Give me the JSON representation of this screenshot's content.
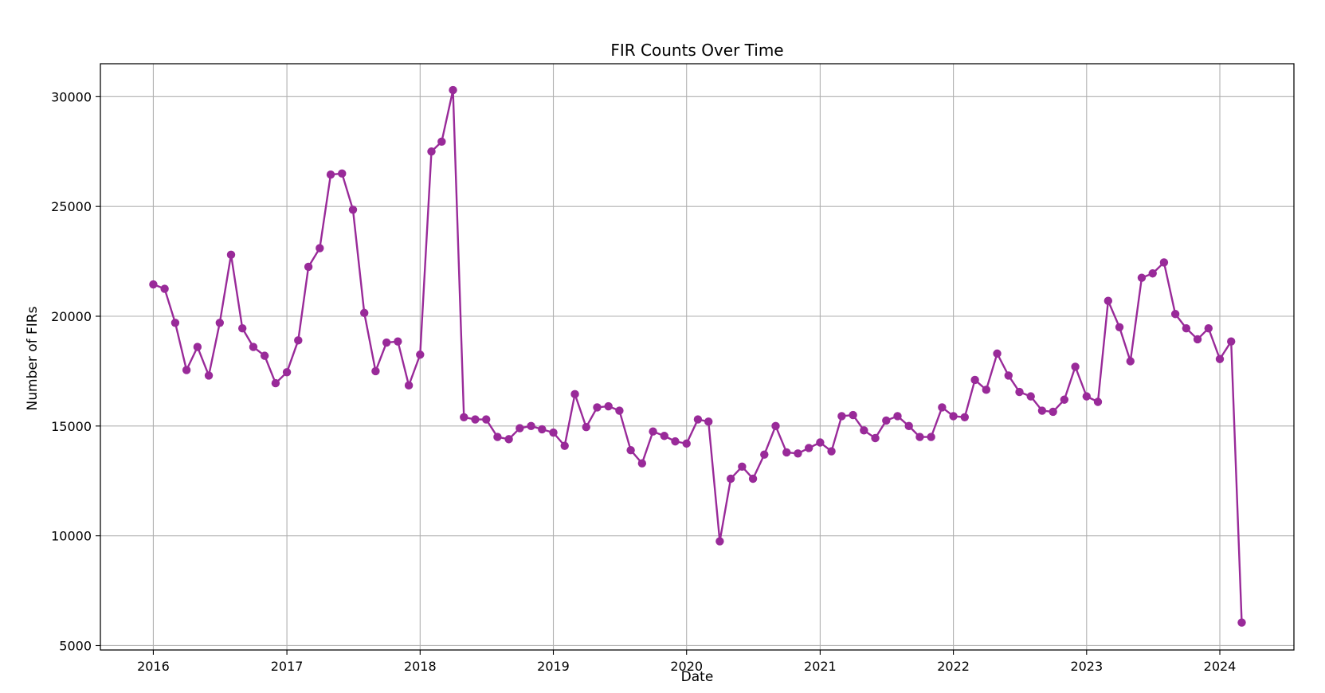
{
  "chart_data": {
    "type": "line",
    "title": "FIR Counts Over Time",
    "xlabel": "Date",
    "ylabel": "Number of FIRs",
    "x_ticks": [
      "2016",
      "2017",
      "2018",
      "2019",
      "2020",
      "2021",
      "2022",
      "2023",
      "2024"
    ],
    "y_ticks": [
      5000,
      10000,
      15000,
      20000,
      25000,
      30000
    ],
    "xlim": [
      "2015-08-09",
      "2024-07-22"
    ],
    "ylim": [
      4800,
      31500
    ],
    "grid": true,
    "colors": {
      "series": "#992a99",
      "grid": "#b0b0b0",
      "axes": "#000000"
    },
    "series": [
      {
        "marker": "circle",
        "x": [
          "2016-01",
          "2016-02",
          "2016-03",
          "2016-04",
          "2016-05",
          "2016-06",
          "2016-07",
          "2016-08",
          "2016-09",
          "2016-10",
          "2016-11",
          "2016-12",
          "2017-01",
          "2017-02",
          "2017-03",
          "2017-04",
          "2017-05",
          "2017-06",
          "2017-07",
          "2017-08",
          "2017-09",
          "2017-10",
          "2017-11",
          "2017-12",
          "2018-01",
          "2018-02",
          "2018-03",
          "2018-04",
          "2018-05",
          "2018-06",
          "2018-07",
          "2018-08",
          "2018-09",
          "2018-10",
          "2018-11",
          "2018-12",
          "2019-01",
          "2019-02",
          "2019-03",
          "2019-04",
          "2019-05",
          "2019-06",
          "2019-07",
          "2019-08",
          "2019-09",
          "2019-10",
          "2019-11",
          "2019-12",
          "2020-01",
          "2020-02",
          "2020-03",
          "2020-04",
          "2020-05",
          "2020-06",
          "2020-07",
          "2020-08",
          "2020-09",
          "2020-10",
          "2020-11",
          "2020-12",
          "2021-01",
          "2021-02",
          "2021-03",
          "2021-04",
          "2021-05",
          "2021-06",
          "2021-07",
          "2021-08",
          "2021-09",
          "2021-10",
          "2021-11",
          "2021-12",
          "2022-01",
          "2022-02",
          "2022-03",
          "2022-04",
          "2022-05",
          "2022-06",
          "2022-07",
          "2022-08",
          "2022-09",
          "2022-10",
          "2022-11",
          "2022-12",
          "2023-01",
          "2023-02",
          "2023-03",
          "2023-04",
          "2023-05",
          "2023-06",
          "2023-07",
          "2023-08",
          "2023-09",
          "2023-10",
          "2023-11",
          "2023-12",
          "2024-01",
          "2024-02",
          "2024-03"
        ],
        "values": [
          21450,
          21250,
          19700,
          17550,
          18600,
          17300,
          19700,
          22800,
          19450,
          18600,
          18200,
          16950,
          17450,
          18900,
          22250,
          23100,
          26450,
          26500,
          24850,
          20150,
          17500,
          18800,
          18850,
          16850,
          18250,
          27500,
          27950,
          30300,
          15400,
          15300,
          15300,
          14500,
          14400,
          14900,
          15000,
          14850,
          14700,
          14100,
          16450,
          14950,
          15850,
          15900,
          15700,
          13900,
          13300,
          14750,
          14550,
          14300,
          14200,
          15300,
          15200,
          9750,
          12600,
          13150,
          12600,
          13700,
          15000,
          13800,
          13750,
          14000,
          14250,
          13850,
          15450,
          15500,
          14800,
          14450,
          15250,
          15450,
          15000,
          14500,
          14500,
          15850,
          15450,
          15400,
          17100,
          16650,
          18300,
          17300,
          16550,
          16350,
          15700,
          15650,
          16200,
          17700,
          16350,
          16100,
          20700,
          19500,
          17950,
          21750,
          21950,
          22450,
          20100,
          19450,
          18950,
          19450,
          18050,
          18850,
          6050
        ]
      }
    ]
  }
}
